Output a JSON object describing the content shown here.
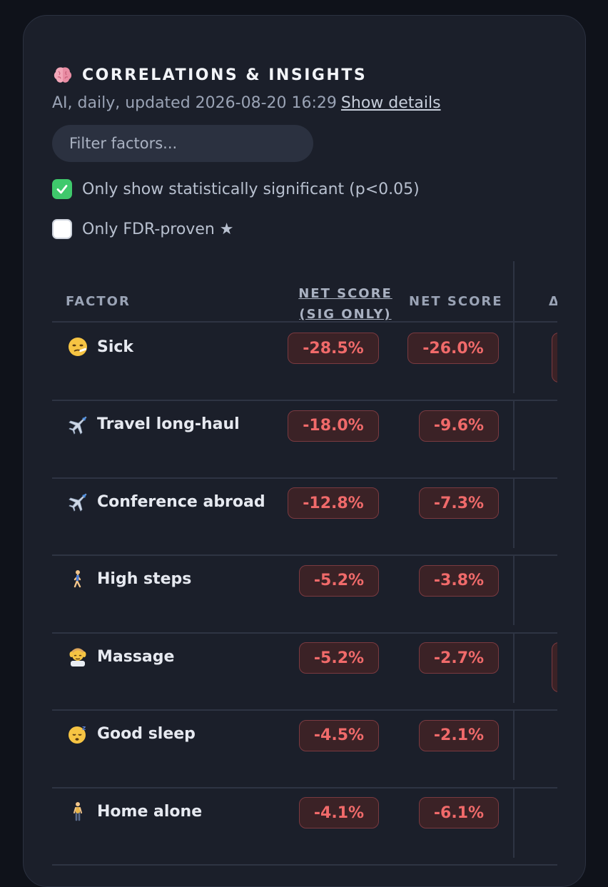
{
  "header": {
    "title": "CORRELATIONS & INSIGHTS",
    "subtitle": "AI, daily, updated 2026-08-20 16:29",
    "details_link": "Show details"
  },
  "filter": {
    "placeholder": "Filter factors..."
  },
  "options": {
    "significant_label": "Only show statistically significant (p<0.05)",
    "significant_checked": true,
    "fdr_label": "Only FDR-proven ★",
    "fdr_checked": false
  },
  "table": {
    "columns": {
      "factor": "FACTOR",
      "net_sig_line1": "NET SCORE",
      "net_sig_line2": "(SIG ONLY)",
      "net": "NET SCORE",
      "rel": "Δ RI"
    },
    "rows": [
      {
        "icon": "sick-face-icon",
        "factor": "Sick",
        "net_sig": "-28.5%",
        "net": "-26.0%"
      },
      {
        "icon": "airplane-icon",
        "factor": "Travel long-haul",
        "net_sig": "-18.0%",
        "net": "-9.6%"
      },
      {
        "icon": "airplane-icon",
        "factor": "Conference abroad",
        "net_sig": "-12.8%",
        "net": "-7.3%"
      },
      {
        "icon": "walking-person-icon",
        "factor": "High steps",
        "net_sig": "-5.2%",
        "net": "-3.8%"
      },
      {
        "icon": "massage-icon",
        "factor": "Massage",
        "net_sig": "-5.2%",
        "net": "-2.7%"
      },
      {
        "icon": "sleeping-face-icon",
        "factor": "Good sleep",
        "net_sig": "-4.5%",
        "net": "-2.1%"
      },
      {
        "icon": "standing-person-icon",
        "factor": "Home alone",
        "net_sig": "-4.1%",
        "net": "-6.1%"
      }
    ]
  },
  "colors": {
    "negative_text": "#f06a6a",
    "negative_bg": "#3b2226",
    "checkbox_on": "#3fc96c"
  }
}
